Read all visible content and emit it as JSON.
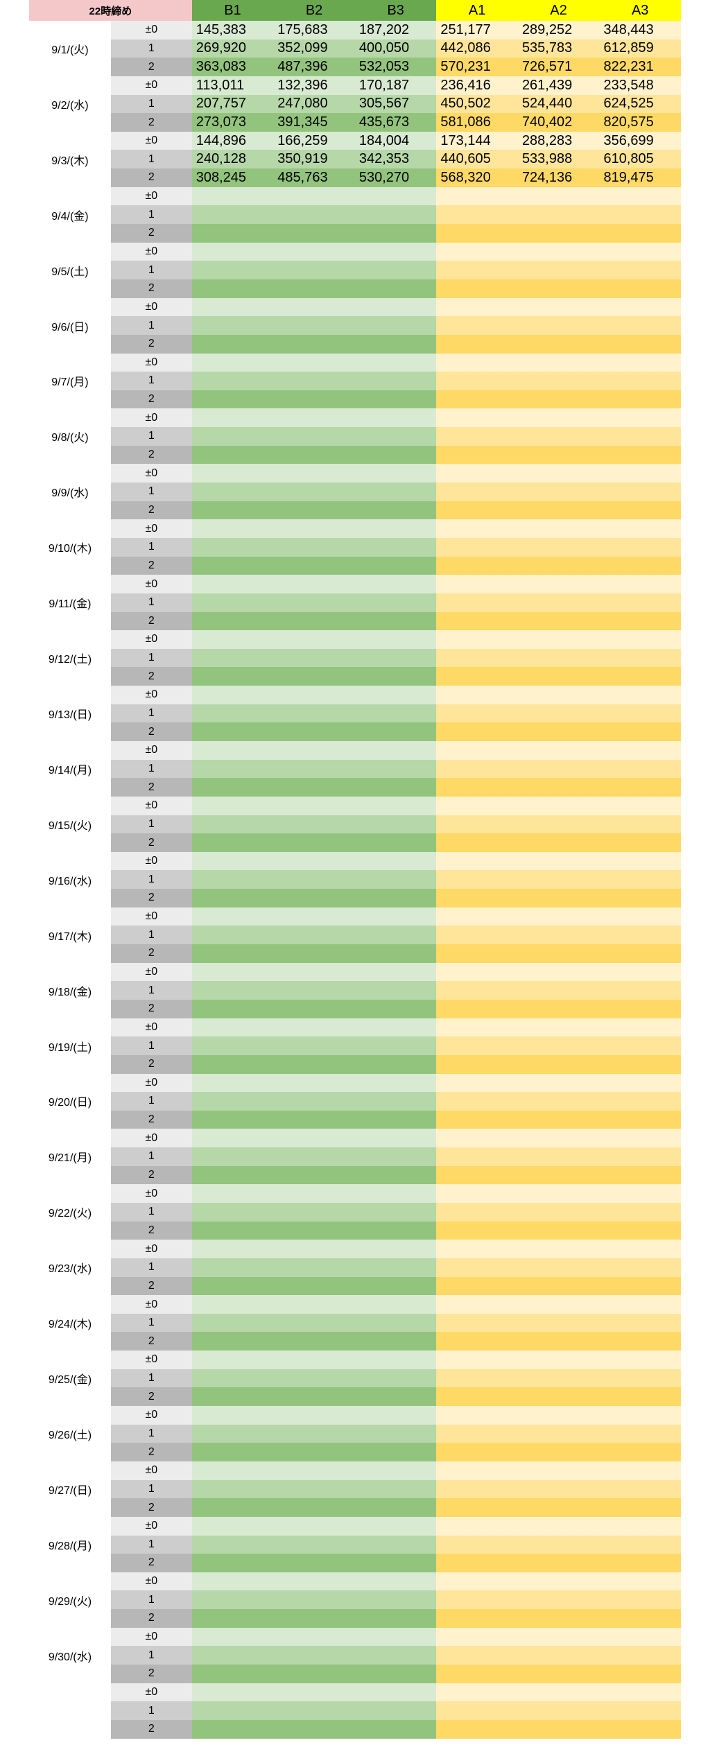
{
  "header": {
    "title": "22時締め",
    "columns": [
      "B1",
      "B2",
      "B3",
      "A1",
      "A2",
      "A3"
    ]
  },
  "offsets": [
    "±0",
    "1",
    "2"
  ],
  "groups": [
    {
      "date": "9/1/(火)",
      "rows": [
        [
          "145,383",
          "175,683",
          "187,202",
          "251,177",
          "289,252",
          "348,443"
        ],
        [
          "269,920",
          "352,099",
          "400,050",
          "442,086",
          "535,783",
          "612,859"
        ],
        [
          "363,083",
          "487,396",
          "532,053",
          "570,231",
          "726,571",
          "822,231"
        ]
      ]
    },
    {
      "date": "9/2/(水)",
      "rows": [
        [
          "113,011",
          "132,396",
          "170,187",
          "236,416",
          "261,439",
          "233,548"
        ],
        [
          "207,757",
          "247,080",
          "305,567",
          "450,502",
          "524,440",
          "624,525"
        ],
        [
          "273,073",
          "391,345",
          "435,673",
          "581,086",
          "740,402",
          "820,575"
        ]
      ]
    },
    {
      "date": "9/3/(木)",
      "rows": [
        [
          "144,896",
          "166,259",
          "184,004",
          "173,144",
          "288,283",
          "356,699"
        ],
        [
          "240,128",
          "350,919",
          "342,353",
          "440,605",
          "533,988",
          "610,805"
        ],
        [
          "308,245",
          "485,763",
          "530,270",
          "568,320",
          "724,136",
          "819,475"
        ]
      ]
    },
    {
      "date": "9/4/(金)",
      "rows": []
    },
    {
      "date": "9/5/(土)",
      "rows": []
    },
    {
      "date": "9/6/(日)",
      "rows": []
    },
    {
      "date": "9/7/(月)",
      "rows": []
    },
    {
      "date": "9/8/(火)",
      "rows": []
    },
    {
      "date": "9/9/(水)",
      "rows": []
    },
    {
      "date": "9/10/(木)",
      "rows": []
    },
    {
      "date": "9/11/(金)",
      "rows": []
    },
    {
      "date": "9/12/(土)",
      "rows": []
    },
    {
      "date": "9/13/(日)",
      "rows": []
    },
    {
      "date": "9/14/(月)",
      "rows": []
    },
    {
      "date": "9/15/(火)",
      "rows": []
    },
    {
      "date": "9/16/(水)",
      "rows": []
    },
    {
      "date": "9/17/(木)",
      "rows": []
    },
    {
      "date": "9/18/(金)",
      "rows": []
    },
    {
      "date": "9/19/(土)",
      "rows": []
    },
    {
      "date": "9/20/(日)",
      "rows": []
    },
    {
      "date": "9/21/(月)",
      "rows": []
    },
    {
      "date": "9/22/(火)",
      "rows": []
    },
    {
      "date": "9/23/(水)",
      "rows": []
    },
    {
      "date": "9/24/(木)",
      "rows": []
    },
    {
      "date": "9/25/(金)",
      "rows": []
    },
    {
      "date": "9/26/(土)",
      "rows": []
    },
    {
      "date": "9/27/(日)",
      "rows": []
    },
    {
      "date": "9/28/(月)",
      "rows": []
    },
    {
      "date": "9/29/(火)",
      "rows": []
    },
    {
      "date": "9/30/(水)",
      "rows": []
    },
    {
      "date": "",
      "rows": []
    }
  ],
  "colors": {
    "title_bg": "#f4c7c9",
    "b_header": "#6aa84f",
    "a_header": "#ffff00",
    "b_shades": [
      "#d9ead3",
      "#b6d7a8",
      "#93c47d"
    ],
    "a_shades": [
      "#fff2cc",
      "#ffe599",
      "#ffd966"
    ],
    "offset_shades": [
      "#ececec",
      "#cdcdcd",
      "#b7b7b7"
    ]
  }
}
